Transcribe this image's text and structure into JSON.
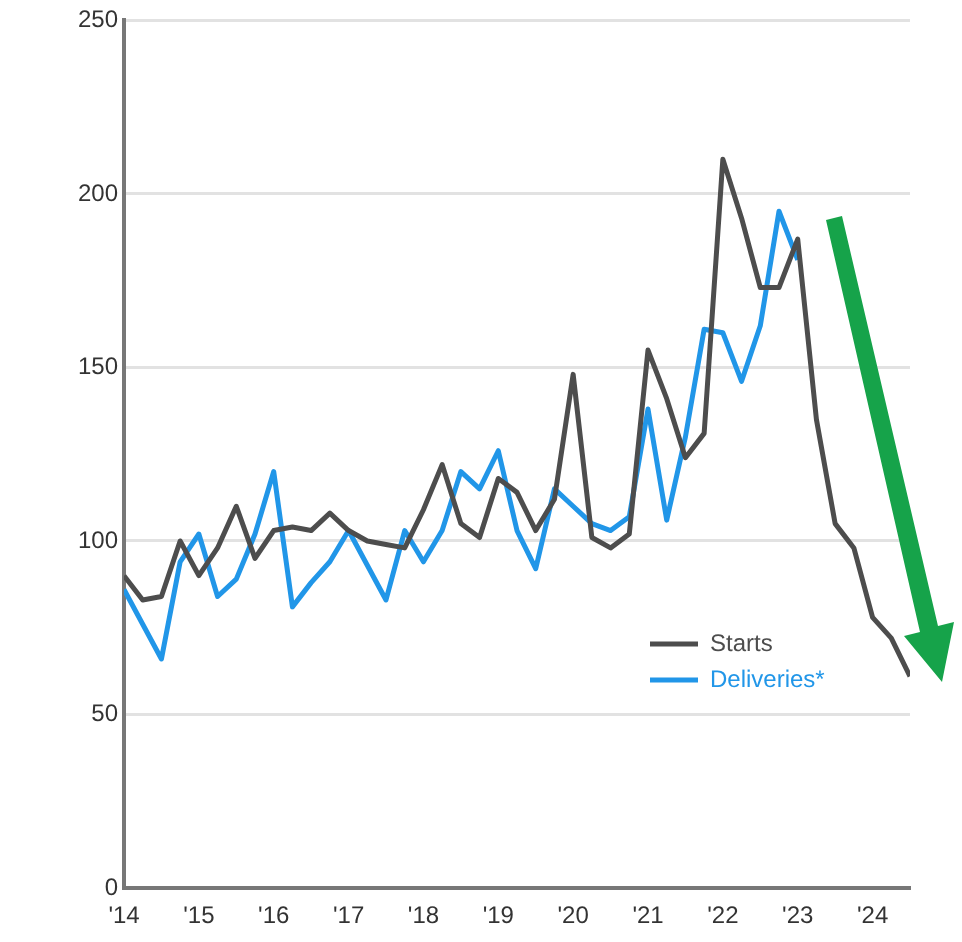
{
  "chart_data": {
    "type": "line",
    "xlim": [
      2014,
      2024.5
    ],
    "xticks": [
      {
        "value": 2014,
        "label": "'14"
      },
      {
        "value": 2015,
        "label": "'15"
      },
      {
        "value": 2016,
        "label": "'16"
      },
      {
        "value": 2017,
        "label": "'17"
      },
      {
        "value": 2018,
        "label": "'18"
      },
      {
        "value": 2019,
        "label": "'19"
      },
      {
        "value": 2020,
        "label": "'20"
      },
      {
        "value": 2021,
        "label": "'21"
      },
      {
        "value": 2022,
        "label": "'22"
      },
      {
        "value": 2023,
        "label": "'23"
      },
      {
        "value": 2024,
        "label": "'24"
      }
    ],
    "ylim": [
      0,
      250
    ],
    "yticks": [
      0,
      50,
      100,
      150,
      200,
      250
    ],
    "grid": "y",
    "legend": "bottom right",
    "marker": "none",
    "line_style": "solid",
    "x": [
      2014,
      2014.25,
      2014.5,
      2014.75,
      2015,
      2015.25,
      2015.5,
      2015.75,
      2016,
      2016.25,
      2016.5,
      2016.75,
      2017,
      2017.25,
      2017.5,
      2017.75,
      2018,
      2018.25,
      2018.5,
      2018.75,
      2019,
      2019.25,
      2019.5,
      2019.75,
      2020,
      2020.25,
      2020.5,
      2020.75,
      2021,
      2021.25,
      2021.5,
      2021.75,
      2022,
      2022.25,
      2022.5,
      2022.75,
      2023,
      2023.25,
      2023.5,
      2023.75,
      2024,
      2024.25,
      2024.5
    ],
    "series": [
      {
        "name": "Starts",
        "color": "#4d4d4d",
        "values": [
          90,
          83,
          84,
          100,
          90,
          98,
          110,
          95,
          103,
          104,
          103,
          108,
          103,
          100,
          99,
          98,
          109,
          122,
          105,
          101,
          118,
          114,
          103,
          112,
          148,
          101,
          98,
          102,
          155,
          141,
          124,
          131,
          210,
          193,
          173,
          173,
          187,
          135,
          105,
          98,
          78,
          72,
          61
        ]
      },
      {
        "name": "Deliveries*",
        "color": "#2196e8",
        "values": [
          86,
          76,
          66,
          94,
          102,
          84,
          89,
          102,
          120,
          81,
          88,
          94,
          103,
          93,
          83,
          103,
          94,
          103,
          120,
          115,
          126,
          103,
          92,
          115,
          110,
          105,
          103,
          107,
          138,
          106,
          130,
          161,
          160,
          146,
          162,
          195,
          181,
          null,
          null,
          null,
          null,
          null,
          null
        ]
      }
    ]
  }
}
